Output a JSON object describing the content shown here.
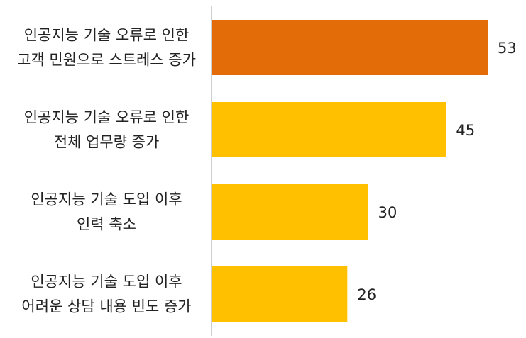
{
  "chart_data": {
    "type": "bar",
    "orientation": "horizontal",
    "title": "",
    "xlabel": "",
    "ylabel": "",
    "xlim": [
      0,
      60
    ],
    "grid": false,
    "categories": [
      [
        "인공지능 기술 오류로 인한",
        "고객 민원으로 스트레스 증가"
      ],
      [
        "인공지능 기술 오류로 인한",
        "전체 업무량 증가"
      ],
      [
        "인공지능 기술 도입 이후",
        "인력 축소"
      ],
      [
        "인공지능 기술 도입 이후",
        "어려운 상담 내용 빈도 증가"
      ]
    ],
    "values": [
      53,
      45,
      30,
      26
    ],
    "colors": [
      "#e36c09",
      "#ffc000",
      "#ffc000",
      "#ffc000"
    ],
    "axis_color": "#bfbfbf"
  }
}
